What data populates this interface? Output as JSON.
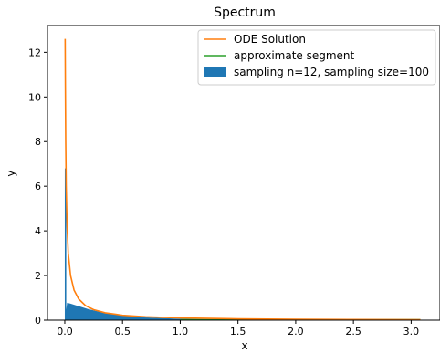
{
  "chart_data": {
    "type": "bar",
    "title": "Spectrum",
    "xlabel": "x",
    "ylabel": "y",
    "xlim": [
      -0.15,
      3.25
    ],
    "ylim": [
      0,
      13.2
    ],
    "xticks": [
      0.0,
      0.5,
      1.0,
      1.5,
      2.0,
      2.5,
      3.0
    ],
    "xtick_labels": [
      "0.0",
      "0.5",
      "1.0",
      "1.5",
      "2.0",
      "2.5",
      "3.0"
    ],
    "yticks": [
      0,
      2,
      4,
      6,
      8,
      10,
      12
    ],
    "ytick_labels": [
      "0",
      "2",
      "4",
      "6",
      "8",
      "10",
      "12"
    ],
    "legend_position": "top-right",
    "colors": {
      "histogram": "#1f77b4",
      "ode": "#ff7f0e",
      "segment": "#2ca02c"
    },
    "legend": {
      "ode": "ODE Solution",
      "segment": "approximate segment",
      "histogram": "sampling n=12, sampling size=100"
    },
    "histogram": {
      "name": "sampling n=12, sampling size=100",
      "x_start": 0.0,
      "x_end": 3.08,
      "spike": {
        "x": 0.01,
        "value": 6.8
      },
      "points": [
        [
          0.02,
          0.78
        ],
        [
          0.05,
          0.74
        ],
        [
          0.1,
          0.66
        ],
        [
          0.15,
          0.58
        ],
        [
          0.2,
          0.5
        ],
        [
          0.25,
          0.44
        ],
        [
          0.3,
          0.38
        ],
        [
          0.35,
          0.33
        ],
        [
          0.4,
          0.29
        ],
        [
          0.5,
          0.22
        ],
        [
          0.6,
          0.17
        ],
        [
          0.7,
          0.13
        ],
        [
          0.8,
          0.1
        ],
        [
          0.9,
          0.08
        ],
        [
          1.0,
          0.06
        ],
        [
          1.1,
          0.05
        ],
        [
          1.3,
          0.04
        ],
        [
          1.5,
          0.03
        ],
        [
          2.0,
          0.02
        ],
        [
          2.5,
          0.015
        ],
        [
          3.08,
          0.01
        ]
      ]
    },
    "ode_solution": {
      "name": "ODE Solution",
      "x": [
        0.003,
        0.005,
        0.008,
        0.012,
        0.02,
        0.03,
        0.05,
        0.08,
        0.12,
        0.18,
        0.25,
        0.35,
        0.5,
        0.7,
        1.0,
        1.5,
        2.0,
        2.5,
        3.08
      ],
      "y": [
        12.6,
        10.5,
        8.0,
        6.0,
        4.2,
        3.0,
        2.0,
        1.35,
        0.95,
        0.65,
        0.47,
        0.33,
        0.22,
        0.15,
        0.1,
        0.06,
        0.04,
        0.03,
        0.02
      ]
    },
    "approximate_segment": {
      "name": "approximate segment",
      "x": [
        1.0,
        3.08
      ],
      "y": [
        0.02,
        0.02
      ]
    }
  }
}
